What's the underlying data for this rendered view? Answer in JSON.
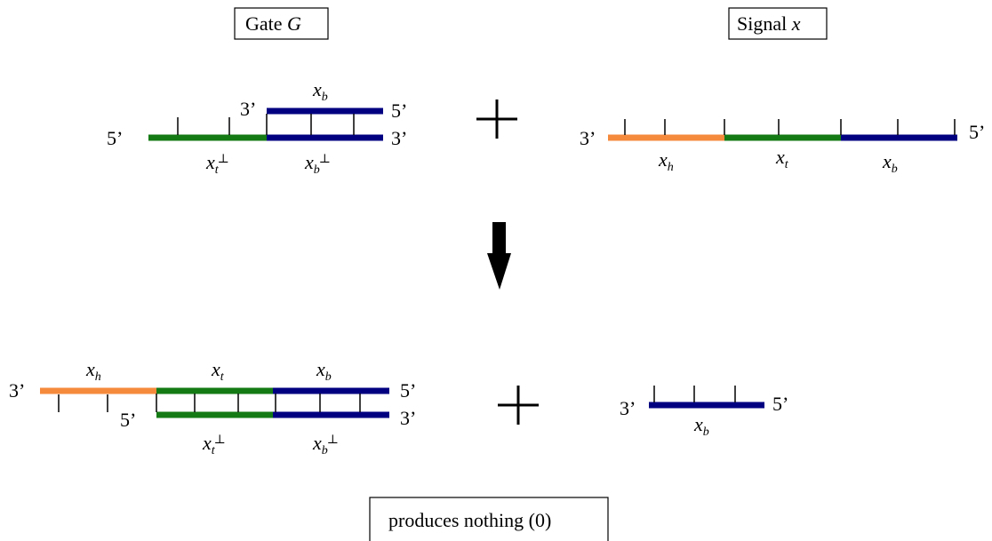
{
  "colors": {
    "orange": "#f58a3c",
    "green": "#147a14",
    "navy": "#000080",
    "black": "#000000"
  },
  "titles": {
    "gate": {
      "text": "Gate ",
      "var": "G"
    },
    "signal": {
      "text": "Signal ",
      "var": "x"
    },
    "result": "produces nothing (0)"
  },
  "ends": {
    "three": "3’",
    "five": "5’"
  },
  "domains": {
    "xh": {
      "base": "x",
      "sub": "h"
    },
    "xt": {
      "base": "x",
      "sub": "t"
    },
    "xb": {
      "base": "x",
      "sub": "b"
    },
    "xt_perp": {
      "base": "x",
      "sub": "t",
      "sup": "⊥"
    },
    "xb_perp": {
      "base": "x",
      "sub": "b",
      "sup": "⊥"
    }
  },
  "operators": {
    "plus": "+"
  }
}
